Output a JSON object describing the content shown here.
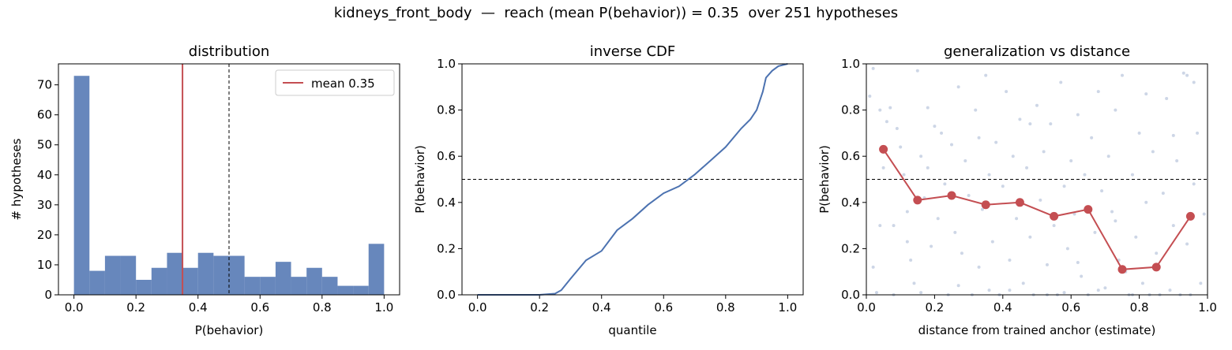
{
  "figure": {
    "suptitle": "kidneys_front_body  —  reach (mean P(behavior)) = 0.35  over 251 hypotheses"
  },
  "colors": {
    "blue": "#4c72b0",
    "red": "#c44e52",
    "scatter": "#b8c4dc"
  },
  "chart_data": [
    {
      "type": "bar",
      "title": "distribution",
      "xlabel": "P(behavior)",
      "ylabel": "# hypotheses",
      "xlim": [
        -0.05,
        1.05
      ],
      "ylim": [
        0,
        77
      ],
      "xticks": [
        "0.0",
        "0.2",
        "0.4",
        "0.6",
        "0.8",
        "1.0"
      ],
      "yticks": [
        "0",
        "10",
        "20",
        "30",
        "40",
        "50",
        "60",
        "70"
      ],
      "bin_width": 0.05,
      "bin_starts": [
        0.0,
        0.05,
        0.1,
        0.15,
        0.2,
        0.25,
        0.3,
        0.35,
        0.4,
        0.45,
        0.5,
        0.55,
        0.6,
        0.65,
        0.7,
        0.75,
        0.8,
        0.85,
        0.9,
        0.95
      ],
      "values": [
        73,
        8,
        13,
        13,
        5,
        9,
        14,
        9,
        14,
        13,
        13,
        6,
        6,
        11,
        6,
        9,
        6,
        3,
        3,
        17
      ],
      "mean_line": 0.35,
      "threshold_line": 0.5,
      "legend": [
        "mean 0.35"
      ],
      "legend_position": "upper right"
    },
    {
      "type": "line",
      "title": "inverse CDF",
      "xlabel": "quantile",
      "ylabel": "P(behavior)",
      "xlim": [
        -0.05,
        1.05
      ],
      "ylim": [
        0,
        1
      ],
      "xticks": [
        "0.0",
        "0.2",
        "0.4",
        "0.6",
        "0.8",
        "1.0"
      ],
      "yticks": [
        "0.0",
        "0.2",
        "0.4",
        "0.6",
        "0.8",
        "1.0"
      ],
      "x": [
        0,
        0.05,
        0.1,
        0.15,
        0.2,
        0.25,
        0.27,
        0.3,
        0.35,
        0.4,
        0.45,
        0.5,
        0.55,
        0.6,
        0.65,
        0.7,
        0.75,
        0.8,
        0.85,
        0.88,
        0.9,
        0.92,
        0.93,
        0.95,
        0.97,
        1.0
      ],
      "y": [
        0,
        0,
        0,
        0,
        0,
        0.005,
        0.02,
        0.07,
        0.15,
        0.19,
        0.28,
        0.33,
        0.39,
        0.44,
        0.47,
        0.52,
        0.58,
        0.64,
        0.72,
        0.76,
        0.8,
        0.88,
        0.94,
        0.97,
        0.99,
        1.0
      ],
      "threshold_line": 0.5
    },
    {
      "type": "line",
      "title": "generalization vs distance",
      "xlabel": "distance from trained anchor (estimate)",
      "ylabel": "P(behavior)",
      "xlim": [
        0,
        1
      ],
      "ylim": [
        0,
        1
      ],
      "xticks": [
        "0.0",
        "0.2",
        "0.4",
        "0.6",
        "0.8",
        "1.0"
      ],
      "yticks": [
        "0.0",
        "0.2",
        "0.4",
        "0.6",
        "0.8",
        "1.0"
      ],
      "x": [
        0.05,
        0.15,
        0.25,
        0.35,
        0.45,
        0.55,
        0.65,
        0.75,
        0.85,
        0.95
      ],
      "y": [
        0.63,
        0.41,
        0.43,
        0.39,
        0.4,
        0.34,
        0.37,
        0.11,
        0.12,
        0.34
      ],
      "threshold_line": 0.5,
      "scatter": [
        [
          0.01,
          0.86
        ],
        [
          0.02,
          0.98
        ],
        [
          0.03,
          0.01
        ],
        [
          0.04,
          0.8
        ],
        [
          0.05,
          0.55
        ],
        [
          0.06,
          0.75
        ],
        [
          0.07,
          0.81
        ],
        [
          0.08,
          0.3
        ],
        [
          0.09,
          0.72
        ],
        [
          0.1,
          0.64
        ],
        [
          0.02,
          0.12
        ],
        [
          0.04,
          0.3
        ],
        [
          0.08,
          0.0
        ],
        [
          0.11,
          0.52
        ],
        [
          0.12,
          0.36
        ],
        [
          0.13,
          0.15
        ],
        [
          0.14,
          0.05
        ],
        [
          0.15,
          0.97
        ],
        [
          0.16,
          0.6
        ],
        [
          0.17,
          0.42
        ],
        [
          0.18,
          0.55
        ],
        [
          0.19,
          0.21
        ],
        [
          0.2,
          0.73
        ],
        [
          0.21,
          0.33
        ],
        [
          0.22,
          0.7
        ],
        [
          0.23,
          0.48
        ],
        [
          0.24,
          0.0
        ],
        [
          0.25,
          0.65
        ],
        [
          0.26,
          0.27
        ],
        [
          0.27,
          0.9
        ],
        [
          0.28,
          0.18
        ],
        [
          0.29,
          0.58
        ],
        [
          0.3,
          0.43
        ],
        [
          0.31,
          0.0
        ],
        [
          0.32,
          0.8
        ],
        [
          0.33,
          0.12
        ],
        [
          0.34,
          0.37
        ],
        [
          0.35,
          0.95
        ],
        [
          0.36,
          0.52
        ],
        [
          0.37,
          0.23
        ],
        [
          0.38,
          0.66
        ],
        [
          0.39,
          0.0
        ],
        [
          0.4,
          0.47
        ],
        [
          0.41,
          0.88
        ],
        [
          0.42,
          0.15
        ],
        [
          0.43,
          0.6
        ],
        [
          0.44,
          0.33
        ],
        [
          0.45,
          0.76
        ],
        [
          0.46,
          0.05
        ],
        [
          0.47,
          0.55
        ],
        [
          0.48,
          0.25
        ],
        [
          0.49,
          0.0
        ],
        [
          0.5,
          0.82
        ],
        [
          0.51,
          0.41
        ],
        [
          0.52,
          0.62
        ],
        [
          0.53,
          0.13
        ],
        [
          0.54,
          0.74
        ],
        [
          0.55,
          0.3
        ],
        [
          0.56,
          0.0
        ],
        [
          0.57,
          0.92
        ],
        [
          0.58,
          0.47
        ],
        [
          0.59,
          0.2
        ],
        [
          0.6,
          0.58
        ],
        [
          0.61,
          0.35
        ],
        [
          0.62,
          0.78
        ],
        [
          0.63,
          0.08
        ],
        [
          0.64,
          0.52
        ],
        [
          0.65,
          0.0
        ],
        [
          0.66,
          0.68
        ],
        [
          0.67,
          0.27
        ],
        [
          0.68,
          0.88
        ],
        [
          0.69,
          0.45
        ],
        [
          0.7,
          0.03
        ],
        [
          0.71,
          0.6
        ],
        [
          0.72,
          0.36
        ],
        [
          0.73,
          0.8
        ],
        [
          0.74,
          0.15
        ],
        [
          0.75,
          0.95
        ],
        [
          0.76,
          0.1
        ],
        [
          0.77,
          0.0
        ],
        [
          0.78,
          0.52
        ],
        [
          0.79,
          0.25
        ],
        [
          0.8,
          0.7
        ],
        [
          0.81,
          0.05
        ],
        [
          0.82,
          0.4
        ],
        [
          0.83,
          0.0
        ],
        [
          0.84,
          0.62
        ],
        [
          0.85,
          0.18
        ],
        [
          0.86,
          0.0
        ],
        [
          0.87,
          0.44
        ],
        [
          0.88,
          0.85
        ],
        [
          0.89,
          0.02
        ],
        [
          0.9,
          0.3
        ],
        [
          0.91,
          0.58
        ],
        [
          0.92,
          0.0
        ],
        [
          0.93,
          0.96
        ],
        [
          0.94,
          0.22
        ],
        [
          0.95,
          0.0
        ],
        [
          0.96,
          0.48
        ],
        [
          0.97,
          0.7
        ],
        [
          0.98,
          0.05
        ],
        [
          0.99,
          0.35
        ],
        [
          0.94,
          0.95
        ],
        [
          0.96,
          0.92
        ],
        [
          0.12,
          0.23
        ],
        [
          0.18,
          0.81
        ],
        [
          0.27,
          0.04
        ],
        [
          0.33,
          0.68
        ],
        [
          0.42,
          0.02
        ],
        [
          0.48,
          0.74
        ],
        [
          0.53,
          0.0
        ],
        [
          0.62,
          0.14
        ],
        [
          0.68,
          0.02
        ],
        [
          0.73,
          0.32
        ],
        [
          0.82,
          0.87
        ],
        [
          0.9,
          0.69
        ],
        [
          0.16,
          0.01
        ],
        [
          0.36,
          0.02
        ],
        [
          0.58,
          0.01
        ],
        [
          0.78,
          0.0
        ]
      ]
    }
  ]
}
